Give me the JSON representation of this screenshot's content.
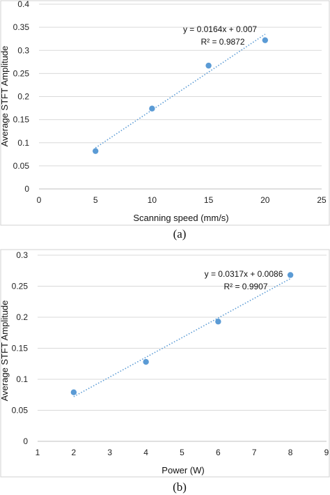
{
  "chart_data": [
    {
      "type": "scatter",
      "caption": "(a)",
      "xlabel": "Scanning speed (mm/s)",
      "ylabel": "Average STFT Amplitude",
      "xlim": [
        0,
        25
      ],
      "ylim": [
        0,
        0.4
      ],
      "xticks": [
        "0",
        "5",
        "10",
        "15",
        "20",
        "25"
      ],
      "yticks": [
        "0",
        "0.05",
        "0.1",
        "0.15",
        "0.2",
        "0.25",
        "0.3",
        "0.35",
        "0.4"
      ],
      "grid": "horizontal",
      "series": [
        {
          "color": "#5b9bd5",
          "x": [
            5,
            10,
            15,
            20
          ],
          "y": [
            0.082,
            0.174,
            0.267,
            0.322
          ]
        }
      ],
      "trendline": {
        "equation": "y = 0.0164x + 0.007",
        "r2": "R² = 0.9872",
        "slope": 0.0164,
        "intercept": 0.007,
        "style": "dotted"
      }
    },
    {
      "type": "scatter",
      "caption": "(b)",
      "xlabel": "Power (W)",
      "ylabel": "Average STFT Amplitude",
      "xlim": [
        1,
        9
      ],
      "ylim": [
        0,
        0.3
      ],
      "xticks": [
        "1",
        "2",
        "3",
        "4",
        "5",
        "6",
        "7",
        "8",
        "9"
      ],
      "yticks": [
        "0",
        "0.05",
        "0.1",
        "0.15",
        "0.2",
        "0.25",
        "0.3"
      ],
      "grid": "horizontal",
      "series": [
        {
          "color": "#5b9bd5",
          "x": [
            2,
            4,
            6,
            8
          ],
          "y": [
            0.079,
            0.128,
            0.193,
            0.268
          ]
        }
      ],
      "trendline": {
        "equation": "y = 0.0317x + 0.0086",
        "r2": "R² = 0.9907",
        "slope": 0.0317,
        "intercept": 0.0086,
        "style": "dotted"
      }
    }
  ]
}
